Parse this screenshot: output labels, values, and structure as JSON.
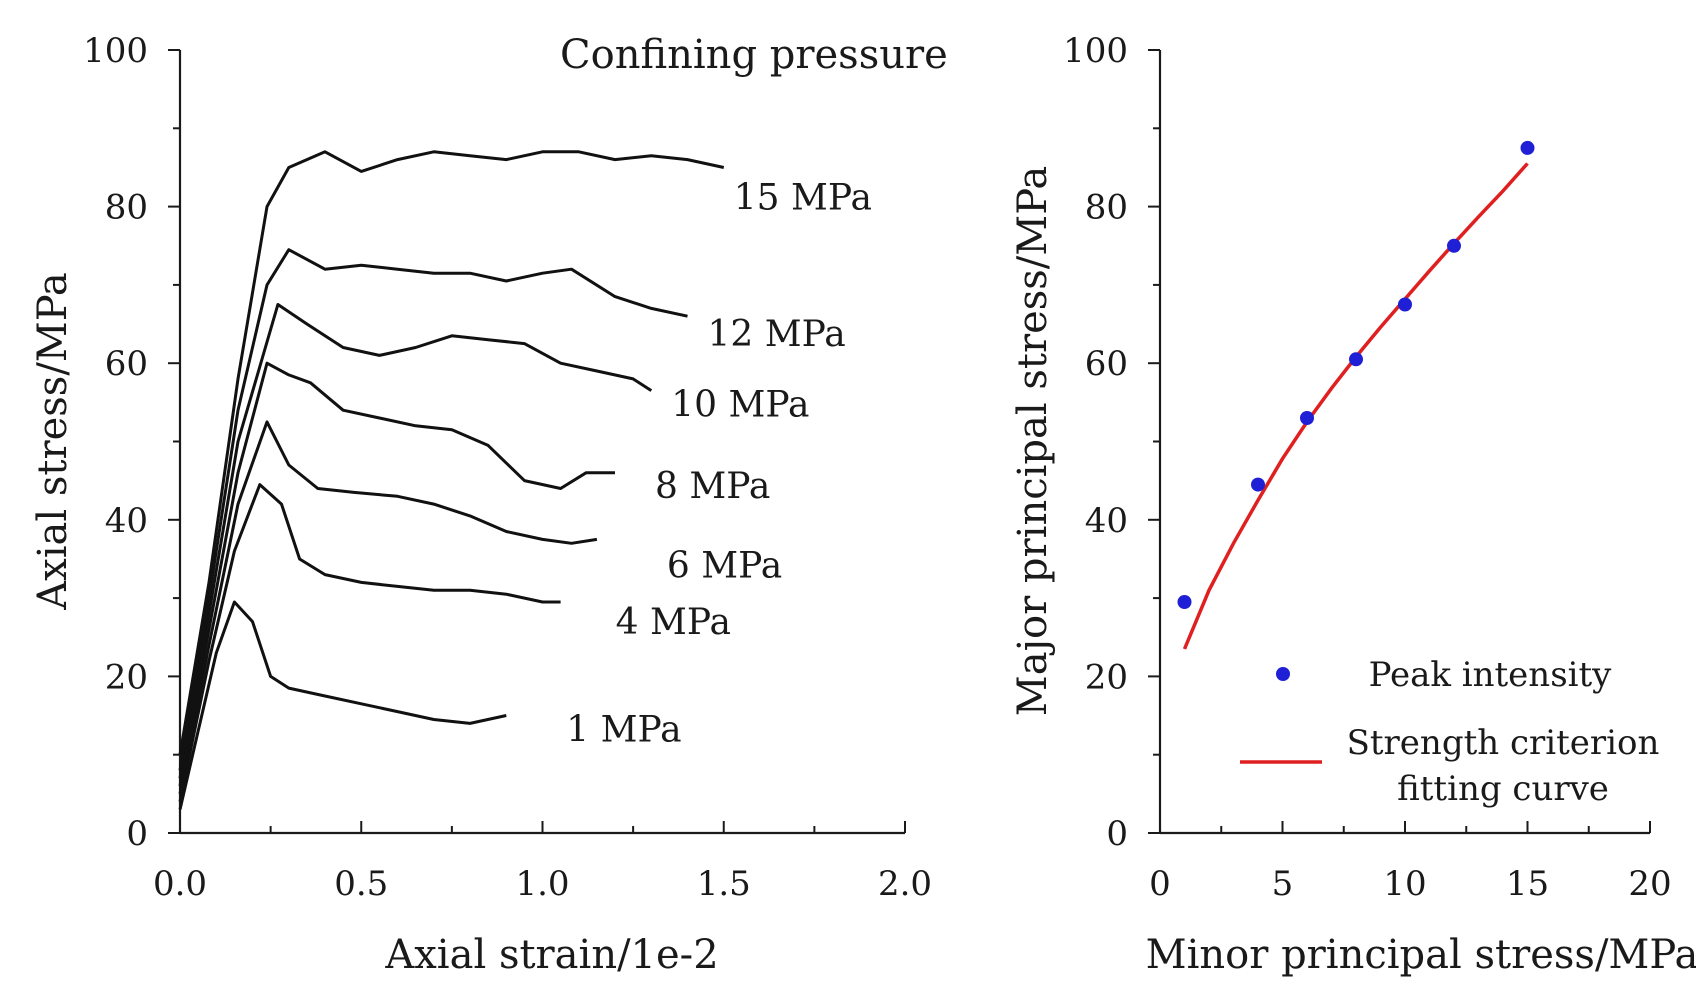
{
  "colors": {
    "curve": "#111111",
    "point": "#1f1fd6",
    "fit": "#e02020"
  },
  "chart_data": [
    {
      "type": "line",
      "title": "",
      "xlabel": "Axial strain/1e-2",
      "ylabel": "Axial stress/MPa",
      "xlim": [
        0,
        2.0
      ],
      "ylim": [
        0,
        100
      ],
      "xticks": [
        "0.0",
        "0.5",
        "1.0",
        "1.5",
        "2.0"
      ],
      "yticks": [
        "0",
        "20",
        "40",
        "60",
        "80",
        "100"
      ],
      "xtick_values": [
        0,
        0.5,
        1.0,
        1.5,
        2.0
      ],
      "ytick_values": [
        0,
        20,
        40,
        60,
        80,
        100
      ],
      "annotation": "Confining pressure",
      "series": [
        {
          "name": "1 MPa",
          "x": [
            0,
            0.05,
            0.1,
            0.15,
            0.2,
            0.25,
            0.3,
            0.4,
            0.5,
            0.6,
            0.7,
            0.8,
            0.9
          ],
          "y": [
            3,
            13,
            23,
            29.5,
            27,
            20,
            18.5,
            17.5,
            16.5,
            15.5,
            14.5,
            14,
            15
          ]
        },
        {
          "name": "4 MPa",
          "x": [
            0,
            0.08,
            0.15,
            0.22,
            0.28,
            0.33,
            0.4,
            0.5,
            0.6,
            0.7,
            0.8,
            0.9,
            1.0,
            1.05
          ],
          "y": [
            4,
            22,
            36,
            44.5,
            42,
            35,
            33,
            32,
            31.5,
            31,
            31,
            30.5,
            29.5,
            29.5
          ]
        },
        {
          "name": "6 MPa",
          "x": [
            0,
            0.08,
            0.16,
            0.24,
            0.3,
            0.38,
            0.48,
            0.6,
            0.7,
            0.8,
            0.9,
            1.0,
            1.08,
            1.15
          ],
          "y": [
            5,
            24,
            42,
            52.5,
            47,
            44,
            43.5,
            43,
            42,
            40.5,
            38.5,
            37.5,
            37,
            37.5
          ]
        },
        {
          "name": "8 MPa",
          "x": [
            0,
            0.08,
            0.16,
            0.24,
            0.3,
            0.36,
            0.45,
            0.55,
            0.65,
            0.75,
            0.85,
            0.95,
            1.05,
            1.12,
            1.2
          ],
          "y": [
            6,
            26,
            46,
            60,
            58.5,
            57.5,
            54,
            53,
            52,
            51.5,
            49.5,
            45,
            44,
            46,
            46
          ]
        },
        {
          "name": "10 MPa",
          "x": [
            0,
            0.08,
            0.16,
            0.27,
            0.35,
            0.45,
            0.55,
            0.65,
            0.75,
            0.85,
            0.95,
            1.05,
            1.15,
            1.25,
            1.3
          ],
          "y": [
            7,
            28,
            50,
            67.5,
            65,
            62,
            61,
            62,
            63.5,
            63,
            62.5,
            60,
            59,
            58,
            56.5
          ]
        },
        {
          "name": "12 MPa",
          "x": [
            0,
            0.08,
            0.16,
            0.24,
            0.3,
            0.4,
            0.5,
            0.6,
            0.7,
            0.8,
            0.9,
            1.0,
            1.08,
            1.2,
            1.3,
            1.4
          ],
          "y": [
            8,
            30,
            54,
            70,
            74.5,
            72,
            72.5,
            72,
            71.5,
            71.5,
            70.5,
            71.5,
            72,
            68.5,
            67,
            66
          ]
        },
        {
          "name": "15 MPa",
          "x": [
            0,
            0.08,
            0.16,
            0.24,
            0.3,
            0.4,
            0.5,
            0.6,
            0.7,
            0.8,
            0.9,
            1.0,
            1.1,
            1.2,
            1.3,
            1.4,
            1.5
          ],
          "y": [
            10,
            32,
            58,
            80,
            85,
            87,
            84.5,
            86,
            87,
            86.5,
            86,
            87,
            87,
            86,
            86.5,
            86,
            85
          ]
        }
      ]
    },
    {
      "type": "scatter",
      "title": "",
      "xlabel": "Minor principal stress/MPa",
      "ylabel": "Major principal stress/MPa",
      "xlim": [
        0,
        20
      ],
      "ylim": [
        0,
        100
      ],
      "xticks": [
        "0",
        "5",
        "10",
        "15",
        "20"
      ],
      "yticks": [
        "0",
        "20",
        "40",
        "60",
        "80",
        "100"
      ],
      "xtick_values": [
        0,
        5,
        10,
        15,
        20
      ],
      "ytick_values": [
        0,
        20,
        40,
        60,
        80,
        100
      ],
      "legend_position": "bottom-right",
      "series": [
        {
          "name": "Peak intensity",
          "kind": "points",
          "x": [
            1,
            4,
            6,
            8,
            10,
            12,
            15
          ],
          "y": [
            29.5,
            44.5,
            53,
            60.5,
            67.5,
            75,
            87.5
          ]
        },
        {
          "name": "Strength criterion fitting curve",
          "kind": "line",
          "x": [
            1,
            2,
            3,
            4,
            5,
            6,
            7,
            8,
            9,
            10,
            11,
            12,
            13,
            14,
            15
          ],
          "y": [
            23.5,
            31,
            37,
            42.5,
            47.8,
            52.5,
            56.8,
            60.8,
            64.6,
            68.2,
            71.8,
            75.3,
            78.7,
            82,
            85.5
          ]
        }
      ],
      "legend": [
        "Peak intensity",
        "Strength criterion",
        "fitting curve"
      ]
    }
  ]
}
